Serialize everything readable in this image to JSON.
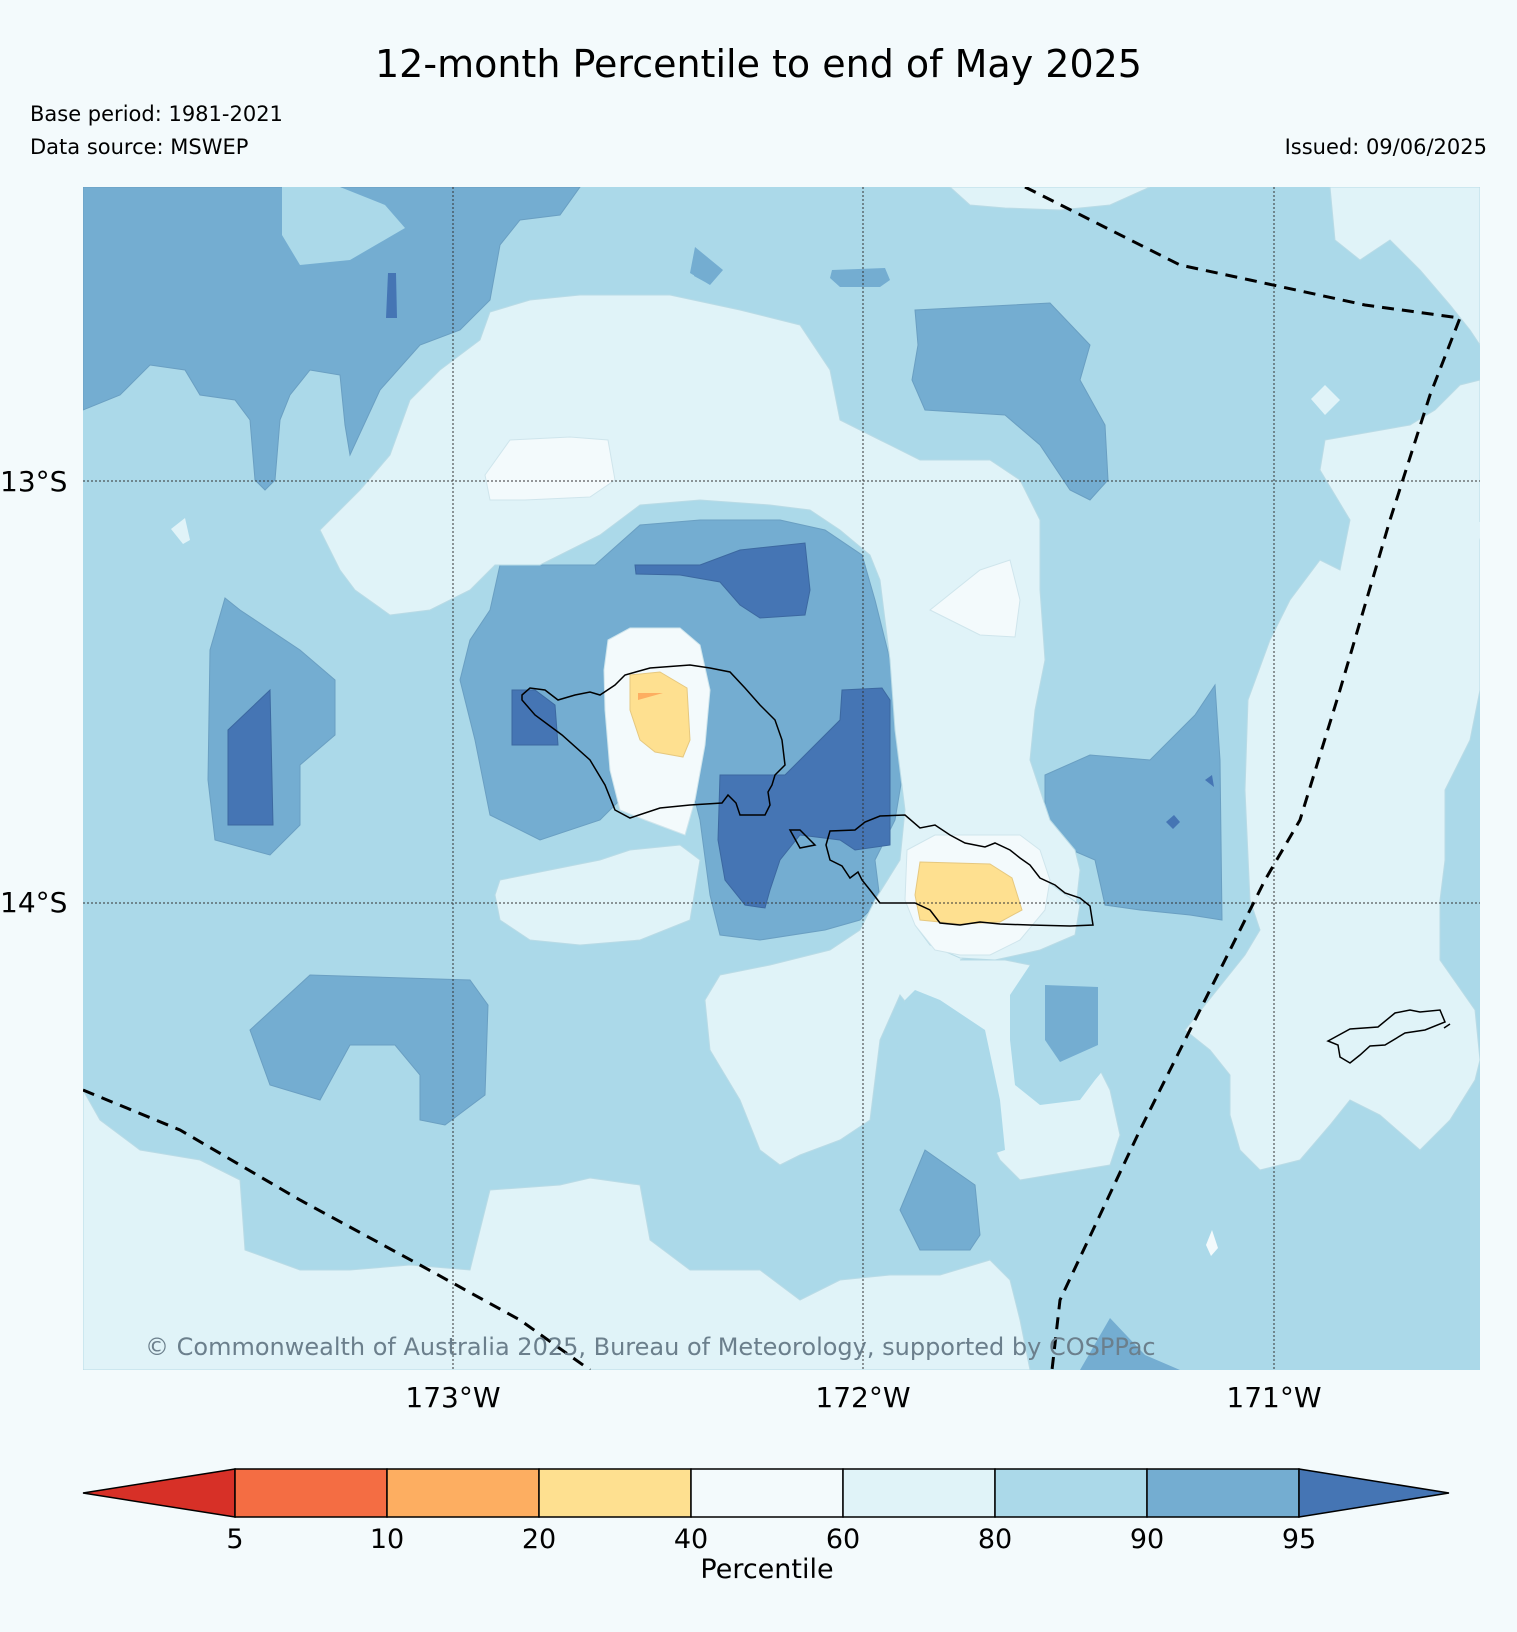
{
  "header": {
    "title": "12-month Percentile to end of May 2025",
    "base_period": "Base period: 1981-2021",
    "data_source": "Data source: MSWEP",
    "issued": "Issued: 09/06/2025"
  },
  "map": {
    "latitude_labels": [
      "13°S",
      "14°S"
    ],
    "longitude_labels": [
      "173°W",
      "172°W",
      "171°W"
    ],
    "copyright": "© Commonwealth of Australia 2025, Bureau of Meteorology, supported by COSPPac"
  },
  "colorbar": {
    "label": "Percentile",
    "ticks": [
      "5",
      "10",
      "20",
      "40",
      "60",
      "80",
      "90",
      "95"
    ],
    "colors": {
      "lt5": "#d73027",
      "5-10": "#f46d43",
      "10-20": "#fdae61",
      "20-40": "#fee090",
      "40-60": "#f3fafc",
      "60-80": "#e0f3f8",
      "80-90": "#abd9e9",
      "90-95": "#74add1",
      "gt95": "#4575b4"
    }
  }
}
